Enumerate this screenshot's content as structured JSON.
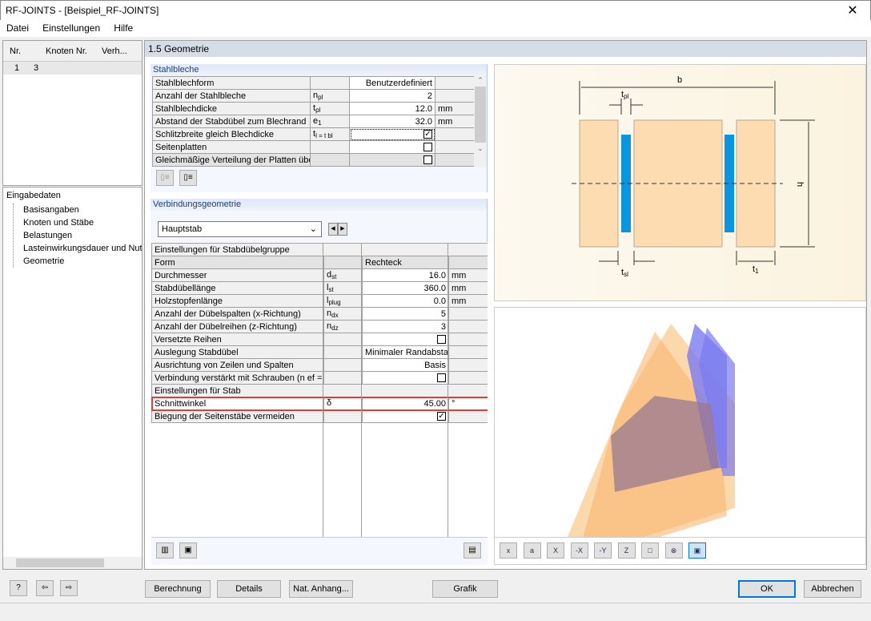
{
  "window": {
    "title": "RF-JOINTS - [Beispiel_RF-JOINTS]",
    "close": "✕"
  },
  "menu": [
    "Datei",
    "Einstellungen",
    "Hilfe"
  ],
  "left": {
    "columns": [
      "Nr.",
      "Knoten Nr.",
      "Verh..."
    ],
    "rows": [
      [
        "1",
        "3",
        ""
      ]
    ],
    "tree_root": "Eingabedaten",
    "tree": [
      "Basisangaben",
      "Knoten und Stäbe",
      "Belastungen",
      "Lasteinwirkungsdauer und Nutz",
      "Geometrie"
    ]
  },
  "main": {
    "title": "1.5 Geometrie",
    "stahlbleche": {
      "title": "Stahlbleche",
      "rows": [
        {
          "label": "Stahlblechform",
          "sym": "",
          "sub": "",
          "value": "Benutzerdefiniert",
          "unit": ""
        },
        {
          "label": "Anzahl der Stahlbleche",
          "sym": "n",
          "sub": "pl",
          "value": "2",
          "unit": ""
        },
        {
          "label": "Stahlblechdicke",
          "sym": "t",
          "sub": "pl",
          "value": "12.0",
          "unit": "mm"
        },
        {
          "label": "Abstand der Stabdübel zum Blechrand",
          "sym": "e",
          "sub": "1",
          "value": "32.0",
          "unit": "mm"
        },
        {
          "label": "Schlitzbreite gleich Blechdicke",
          "sym": "t",
          "sub": "l = t bl",
          "value": "",
          "check": true,
          "unit": ""
        },
        {
          "label": "Seitenplatten",
          "sym": "",
          "sub": "",
          "value": "",
          "check": false,
          "unit": ""
        },
        {
          "label": "Gleichmäßige Verteilung der Platten übe",
          "sym": "",
          "sub": "",
          "value": "",
          "check": false,
          "unit": ""
        }
      ]
    },
    "verbindung": {
      "title": "Verbindungsgeometrie",
      "dropdown": "Hauptstab",
      "rows": [
        {
          "label": "Einstellungen für  Stabdübelgruppe",
          "section": true
        },
        {
          "label": "Form",
          "sym": "",
          "sub": "",
          "value": "Rechteck",
          "unit": "",
          "gray": true
        },
        {
          "label": "Durchmesser",
          "sym": "d",
          "sub": "st",
          "value": "16.0",
          "unit": "mm"
        },
        {
          "label": "Stabdübellänge",
          "sym": "l",
          "sub": "st",
          "value": "360.0",
          "unit": "mm"
        },
        {
          "label": "Holzstopfenlänge",
          "sym": "l",
          "sub": "plug",
          "value": "0.0",
          "unit": "mm"
        },
        {
          "label": "Anzahl der Dübelspalten (x-Richtung)",
          "sym": "n",
          "sub": "dx",
          "value": "5",
          "unit": ""
        },
        {
          "label": "Anzahl der Dübelreihen (z-Richtung)",
          "sym": "n",
          "sub": "dz",
          "value": "3",
          "unit": ""
        },
        {
          "label": "Versetzte Reihen",
          "sym": "",
          "sub": "",
          "value": "",
          "check": false,
          "unit": ""
        },
        {
          "label": "Auslegung Stabdübel",
          "sym": "",
          "sub": "",
          "value": "Minimaler Randabsta",
          "unit": ""
        },
        {
          "label": "Ausrichtung von Zeilen und Spalten",
          "sym": "",
          "sub": "",
          "value": "Basis",
          "unit": ""
        },
        {
          "label": "Verbindung verstärkt mit Schrauben (n ef = r",
          "sym": "",
          "sub": "",
          "value": "",
          "check": false,
          "unit": ""
        },
        {
          "label": "Einstellungen für Stab",
          "section": true
        },
        {
          "label": "Schnittwinkel",
          "sym": "δ",
          "sub": "",
          "value": "45.00",
          "unit": "°",
          "highlight": true
        },
        {
          "label": "Biegung der Seitenstäbe vermeiden",
          "sym": "",
          "sub": "",
          "value": "",
          "check": true,
          "unit": ""
        }
      ]
    }
  },
  "diagram": {
    "labels": {
      "b": "b",
      "tpl": "t",
      "tpl_sub": "pl",
      "h": "h",
      "tsl": "t",
      "tsl_sub": "sl",
      "t1": "t",
      "t1_sub": "1"
    },
    "wood": "#fcdcb0",
    "steel": "#0a96dc"
  },
  "view_toolbar": [
    "x",
    "a",
    "X",
    "-X",
    "-Y",
    "Z",
    "□",
    "⊗",
    "▣"
  ],
  "buttons": {
    "berechnung": "Berechnung",
    "details": "Details",
    "nat": "Nat. Anhang...",
    "grafik": "Grafik",
    "ok": "OK",
    "abbrechen": "Abbrechen"
  },
  "colors": {
    "highlight": "#e03c3c",
    "accent": "#0078d7"
  }
}
